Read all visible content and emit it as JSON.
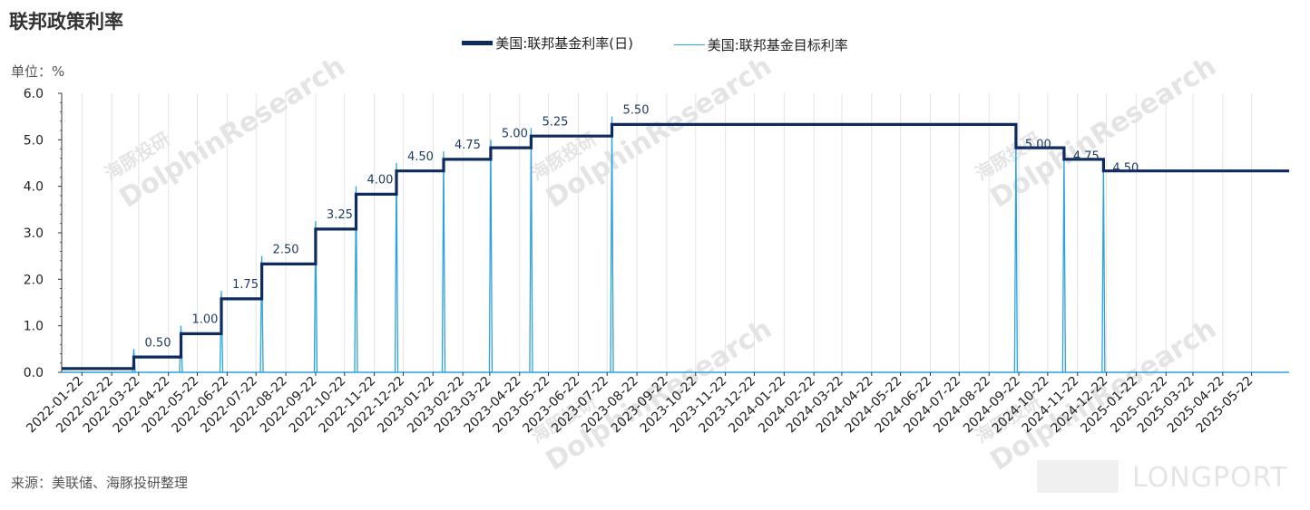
{
  "header": {
    "title": "联邦政策利率",
    "unit": "单位：%"
  },
  "footer": {
    "source": "来源：美联储、海豚投研整理"
  },
  "watermark": {
    "brand": "DolphinResearch",
    "brand_cn": "海豚投研",
    "corner": "LONGPORT"
  },
  "colors": {
    "daily": "#0d2b5e",
    "target": "#2ba3dc",
    "label": "#1f3a5f",
    "axis": "#333333",
    "grid": "#e3e3e3"
  },
  "chart_data": {
    "type": "line",
    "x_ticks": [
      "2022-01-22",
      "2022-02-22",
      "2022-03-22",
      "2022-04-22",
      "2022-05-22",
      "2022-06-22",
      "2022-07-22",
      "2022-08-22",
      "2022-09-22",
      "2022-10-22",
      "2022-11-22",
      "2022-12-22",
      "2023-01-22",
      "2023-02-22",
      "2023-03-22",
      "2023-04-22",
      "2023-05-22",
      "2023-06-22",
      "2023-07-22",
      "2023-08-22",
      "2023-09-22",
      "2023-10-22",
      "2023-11-22",
      "2023-12-22",
      "2024-01-22",
      "2024-02-22",
      "2024-03-22",
      "2024-04-22",
      "2024-05-22",
      "2024-06-22",
      "2024-07-22",
      "2024-08-22",
      "2024-09-22",
      "2024-10-22",
      "2024-11-22",
      "2024-12-22",
      "2025-01-22",
      "2025-02-22",
      "2025-03-22",
      "2025-04-22",
      "2025-05-22"
    ],
    "x_range": [
      "2022-01-01",
      "2025-06-30"
    ],
    "y_ticks": [
      "0.0",
      "1.0",
      "2.0",
      "3.0",
      "4.0",
      "5.0",
      "6.0"
    ],
    "ylim": [
      0,
      6
    ],
    "grid": "vertical",
    "legend_position": "top-center",
    "series": [
      {
        "name": "美国:联邦基金利率(日)",
        "style": "thick-step",
        "points": [
          [
            "2022-01-01",
            0.08
          ],
          [
            "2022-03-17",
            0.08
          ],
          [
            "2022-03-17",
            0.33
          ],
          [
            "2022-05-05",
            0.33
          ],
          [
            "2022-05-05",
            0.83
          ],
          [
            "2022-06-16",
            0.83
          ],
          [
            "2022-06-16",
            1.58
          ],
          [
            "2022-07-28",
            1.58
          ],
          [
            "2022-07-28",
            2.33
          ],
          [
            "2022-09-22",
            2.33
          ],
          [
            "2022-09-22",
            3.08
          ],
          [
            "2022-11-03",
            3.08
          ],
          [
            "2022-11-03",
            3.83
          ],
          [
            "2022-12-15",
            3.83
          ],
          [
            "2022-12-15",
            4.33
          ],
          [
            "2023-02-02",
            4.33
          ],
          [
            "2023-02-02",
            4.58
          ],
          [
            "2023-03-23",
            4.58
          ],
          [
            "2023-03-23",
            4.83
          ],
          [
            "2023-05-04",
            4.83
          ],
          [
            "2023-05-04",
            5.08
          ],
          [
            "2023-07-27",
            5.08
          ],
          [
            "2023-07-27",
            5.33
          ],
          [
            "2024-09-19",
            5.33
          ],
          [
            "2024-09-19",
            4.83
          ],
          [
            "2024-11-08",
            4.83
          ],
          [
            "2024-11-08",
            4.58
          ],
          [
            "2024-12-19",
            4.58
          ],
          [
            "2024-12-19",
            4.33
          ],
          [
            "2025-06-30",
            4.33
          ]
        ]
      },
      {
        "name": "美国:联邦基金目标利率",
        "style": "thin-spike",
        "hikes": [
          {
            "date": "2022-03-17",
            "value": 0.5,
            "label": "0.50"
          },
          {
            "date": "2022-05-05",
            "value": 1.0,
            "label": "1.00"
          },
          {
            "date": "2022-06-16",
            "value": 1.75,
            "label": "1.75"
          },
          {
            "date": "2022-07-28",
            "value": 2.5,
            "label": "2.50"
          },
          {
            "date": "2022-09-22",
            "value": 3.25,
            "label": "3.25"
          },
          {
            "date": "2022-11-03",
            "value": 4.0,
            "label": "4.00"
          },
          {
            "date": "2022-12-15",
            "value": 4.5,
            "label": "4.50"
          },
          {
            "date": "2023-02-02",
            "value": 4.75,
            "label": "4.75"
          },
          {
            "date": "2023-03-23",
            "value": 5.0,
            "label": "5.00"
          },
          {
            "date": "2023-05-04",
            "value": 5.25,
            "label": "5.25"
          },
          {
            "date": "2023-07-27",
            "value": 5.5,
            "label": "5.50"
          }
        ],
        "cuts": [
          {
            "date": "2024-09-19",
            "value": 5.0,
            "label": "5.00"
          },
          {
            "date": "2024-11-08",
            "value": 4.75,
            "label": "4.75"
          },
          {
            "date": "2024-12-19",
            "value": 4.5,
            "label": "4.50"
          }
        ]
      }
    ]
  }
}
